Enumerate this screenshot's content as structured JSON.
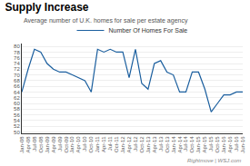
{
  "chart_data": {
    "type": "line",
    "title": "Supply Increase",
    "subtitle": "Average number of U.K. homes for sale per estate agency",
    "annotations": [
      "Rightmove | WSJ.com"
    ],
    "categories": [
      "Jan-08",
      "Apr-08",
      "Jul-08",
      "Oct-08",
      "Jan-09",
      "Apr-09",
      "Jul-09",
      "Oct-09",
      "Jan-10",
      "Apr-10",
      "Jul-10",
      "Oct-10",
      "Jan-11",
      "Apr-11",
      "Jul-11",
      "Oct-11",
      "Jan-12",
      "Apr-12",
      "Jul-12",
      "Oct-12",
      "Jan-13",
      "Apr-13",
      "Jul-13",
      "Oct-13",
      "Jan-14",
      "Apr-14",
      "Jul-14",
      "Oct-14",
      "Jan-15",
      "Apr-15",
      "Jul-15",
      "Oct-15",
      "Jan-16",
      "Apr-16",
      "Jul-16",
      "Jun-16"
    ],
    "series": [
      {
        "name": "Number Of Homes For Sale",
        "color": "#1a5e9e",
        "values": [
          64,
          72,
          79,
          78,
          74,
          72,
          71,
          71,
          70,
          69,
          68,
          64,
          79,
          78,
          79,
          78,
          78,
          69,
          79,
          67,
          65,
          74,
          75,
          71,
          70,
          64,
          64,
          71,
          71,
          65,
          57,
          60,
          63,
          63,
          64,
          64
        ]
      }
    ],
    "ylim": [
      49.5,
      81
    ],
    "yticks": [
      50,
      52,
      54,
      56,
      58,
      60,
      62,
      64,
      66,
      68,
      70,
      72,
      74,
      76,
      78,
      80
    ],
    "grid": true,
    "legend": "top"
  }
}
